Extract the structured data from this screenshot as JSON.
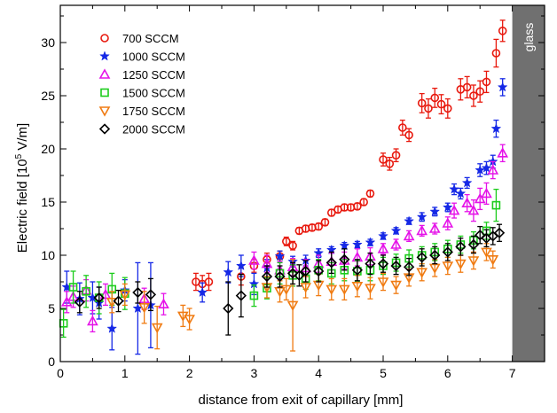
{
  "chart_data": {
    "type": "scatter",
    "title": "",
    "xlabel": "distance from exit of capillary [mm]",
    "ylabel_main": "Electric field [10",
    "ylabel_sup": "5",
    "ylabel_tail": " V/m]",
    "xlim": [
      0,
      7.5
    ],
    "ylim": [
      0,
      33.5
    ],
    "xticks": [
      0,
      1,
      2,
      3,
      4,
      5,
      6,
      7
    ],
    "yticks": [
      0,
      5,
      10,
      15,
      20,
      25,
      30
    ],
    "legend_position": "top-left",
    "glass": {
      "label": "glass",
      "x_start": 7.0,
      "x_end": 7.5,
      "color": "#707070"
    },
    "series": [
      {
        "name": "700 SCCM",
        "marker": "circle",
        "color": "#e8190e",
        "points": [
          [
            2.1,
            7.5,
            0.8
          ],
          [
            2.2,
            7.3,
            0.8
          ],
          [
            2.3,
            7.5,
            0.8
          ],
          [
            2.8,
            8.0,
            0.8
          ],
          [
            3.0,
            9.0,
            0.6
          ],
          [
            3.2,
            9.6,
            0.6
          ],
          [
            3.4,
            9.9,
            0.5
          ],
          [
            3.5,
            11.3,
            0.4
          ],
          [
            3.6,
            10.9,
            0.4
          ],
          [
            3.7,
            12.3,
            0.3
          ],
          [
            3.8,
            12.5,
            0.3
          ],
          [
            3.9,
            12.6,
            0.3
          ],
          [
            4.0,
            12.7,
            0.3
          ],
          [
            4.1,
            13.1,
            0.3
          ],
          [
            4.2,
            14.0,
            0.3
          ],
          [
            4.3,
            14.3,
            0.3
          ],
          [
            4.4,
            14.5,
            0.3
          ],
          [
            4.5,
            14.5,
            0.3
          ],
          [
            4.6,
            14.6,
            0.3
          ],
          [
            4.7,
            15.0,
            0.3
          ],
          [
            4.8,
            15.8,
            0.3
          ],
          [
            5.0,
            19.0,
            0.6
          ],
          [
            5.1,
            18.6,
            0.6
          ],
          [
            5.2,
            19.4,
            0.6
          ],
          [
            5.3,
            22.0,
            0.7
          ],
          [
            5.4,
            21.3,
            0.6
          ],
          [
            5.6,
            24.3,
            0.9
          ],
          [
            5.7,
            23.8,
            0.9
          ],
          [
            5.8,
            24.8,
            0.9
          ],
          [
            5.9,
            24.2,
            0.9
          ],
          [
            6.0,
            23.8,
            0.9
          ],
          [
            6.2,
            25.6,
            1.0
          ],
          [
            6.3,
            25.8,
            1.0
          ],
          [
            6.4,
            25.0,
            1.0
          ],
          [
            6.5,
            25.4,
            1.0
          ],
          [
            6.6,
            26.3,
            1.0
          ],
          [
            6.75,
            29.0,
            1.3
          ],
          [
            6.85,
            31.1,
            1.0
          ]
        ]
      },
      {
        "name": "1000 SCCM",
        "marker": "star",
        "color": "#1528e6",
        "points": [
          [
            0.1,
            7.0,
            1.5
          ],
          [
            0.3,
            5.9,
            1.5
          ],
          [
            0.5,
            6.0,
            1.5
          ],
          [
            0.6,
            5.5,
            1.5
          ],
          [
            0.8,
            3.1,
            2.0
          ],
          [
            1.0,
            6.7,
            1.0
          ],
          [
            1.2,
            5.0,
            4.3
          ],
          [
            1.4,
            5.3,
            4.0
          ],
          [
            2.2,
            6.5,
            0.9
          ],
          [
            2.6,
            8.4,
            1.0
          ],
          [
            2.8,
            9.0,
            1.0
          ],
          [
            3.0,
            7.3,
            1.0
          ],
          [
            3.2,
            8.8,
            0.8
          ],
          [
            3.4,
            9.9,
            0.5
          ],
          [
            3.6,
            9.4,
            0.5
          ],
          [
            3.8,
            9.5,
            0.5
          ],
          [
            4.0,
            10.2,
            0.4
          ],
          [
            4.2,
            10.5,
            0.3
          ],
          [
            4.4,
            10.9,
            0.3
          ],
          [
            4.6,
            11.0,
            0.3
          ],
          [
            4.8,
            11.2,
            0.3
          ],
          [
            5.0,
            11.8,
            0.3
          ],
          [
            5.2,
            12.3,
            0.3
          ],
          [
            5.4,
            13.2,
            0.3
          ],
          [
            5.6,
            13.6,
            0.4
          ],
          [
            5.8,
            14.1,
            0.4
          ],
          [
            6.0,
            14.5,
            0.4
          ],
          [
            6.1,
            16.2,
            0.5
          ],
          [
            6.2,
            15.8,
            0.5
          ],
          [
            6.3,
            16.8,
            0.5
          ],
          [
            6.5,
            18.0,
            0.6
          ],
          [
            6.6,
            18.2,
            0.6
          ],
          [
            6.7,
            18.8,
            0.6
          ],
          [
            6.75,
            21.9,
            0.8
          ],
          [
            6.85,
            25.8,
            0.8
          ]
        ]
      },
      {
        "name": "1250 SCCM",
        "marker": "triangle-up",
        "color": "#e512e8",
        "points": [
          [
            0.1,
            5.6,
            1.0
          ],
          [
            0.2,
            6.1,
            1.0
          ],
          [
            0.4,
            6.7,
            1.0
          ],
          [
            0.5,
            3.8,
            1.0
          ],
          [
            0.7,
            6.3,
            1.0
          ],
          [
            1.3,
            5.9,
            1.0
          ],
          [
            1.6,
            5.4,
            1.0
          ],
          [
            3.0,
            9.5,
            0.8
          ],
          [
            3.2,
            9.2,
            0.8
          ],
          [
            3.4,
            8.6,
            0.8
          ],
          [
            3.6,
            8.9,
            0.8
          ],
          [
            3.8,
            8.8,
            0.8
          ],
          [
            4.0,
            9.2,
            0.8
          ],
          [
            4.2,
            9.4,
            0.8
          ],
          [
            4.4,
            9.5,
            0.8
          ],
          [
            4.6,
            9.8,
            0.8
          ],
          [
            4.8,
            9.9,
            0.8
          ],
          [
            5.0,
            10.6,
            0.5
          ],
          [
            5.2,
            11.0,
            0.5
          ],
          [
            5.4,
            11.8,
            0.5
          ],
          [
            5.6,
            12.3,
            0.5
          ],
          [
            5.8,
            12.5,
            0.5
          ],
          [
            6.0,
            13.0,
            0.6
          ],
          [
            6.1,
            14.2,
            0.7
          ],
          [
            6.3,
            14.9,
            0.8
          ],
          [
            6.4,
            14.2,
            1.0
          ],
          [
            6.5,
            15.3,
            1.0
          ],
          [
            6.6,
            15.8,
            1.0
          ],
          [
            6.7,
            18.0,
            0.8
          ],
          [
            6.85,
            19.6,
            0.8
          ]
        ]
      },
      {
        "name": "1500 SCCM",
        "marker": "square",
        "color": "#1ccc1c",
        "points": [
          [
            0.05,
            3.6,
            1.3
          ],
          [
            0.2,
            7.0,
            1.5
          ],
          [
            0.4,
            6.6,
            1.5
          ],
          [
            0.6,
            6.0,
            1.5
          ],
          [
            0.8,
            6.8,
            1.5
          ],
          [
            1.0,
            6.4,
            1.5
          ],
          [
            3.0,
            6.2,
            1.0
          ],
          [
            3.2,
            6.9,
            1.0
          ],
          [
            3.4,
            8.3,
            1.0
          ],
          [
            3.6,
            8.1,
            1.0
          ],
          [
            3.8,
            7.8,
            1.0
          ],
          [
            4.0,
            8.6,
            1.0
          ],
          [
            4.2,
            8.3,
            1.0
          ],
          [
            4.4,
            8.6,
            1.0
          ],
          [
            4.6,
            8.5,
            1.0
          ],
          [
            4.8,
            8.6,
            1.0
          ],
          [
            5.0,
            9.0,
            0.8
          ],
          [
            5.2,
            9.3,
            0.8
          ],
          [
            5.4,
            9.7,
            0.8
          ],
          [
            5.6,
            10.0,
            0.8
          ],
          [
            5.8,
            10.3,
            0.8
          ],
          [
            6.0,
            10.6,
            0.8
          ],
          [
            6.2,
            11.0,
            0.8
          ],
          [
            6.4,
            11.4,
            0.8
          ],
          [
            6.6,
            12.3,
            0.8
          ],
          [
            6.75,
            14.7,
            1.5
          ]
        ]
      },
      {
        "name": "1750 SCCM",
        "marker": "triangle-down",
        "color": "#f07b12",
        "points": [
          [
            0.8,
            5.6,
            1.0
          ],
          [
            1.0,
            6.3,
            1.0
          ],
          [
            1.3,
            5.1,
            1.5
          ],
          [
            1.5,
            3.2,
            2.0
          ],
          [
            1.9,
            4.3,
            1.0
          ],
          [
            2.0,
            4.0,
            1.0
          ],
          [
            3.2,
            7.0,
            1.0
          ],
          [
            3.4,
            6.6,
            1.0
          ],
          [
            3.5,
            6.8,
            1.0
          ],
          [
            3.6,
            5.3,
            4.3
          ],
          [
            3.8,
            7.0,
            1.0
          ],
          [
            4.0,
            7.2,
            1.0
          ],
          [
            4.2,
            6.8,
            1.0
          ],
          [
            4.4,
            6.8,
            1.0
          ],
          [
            4.6,
            7.1,
            1.0
          ],
          [
            4.8,
            6.9,
            1.0
          ],
          [
            5.0,
            7.5,
            0.8
          ],
          [
            5.2,
            7.2,
            0.8
          ],
          [
            5.4,
            7.9,
            0.8
          ],
          [
            5.6,
            8.4,
            0.8
          ],
          [
            5.8,
            8.8,
            0.8
          ],
          [
            6.0,
            9.0,
            0.8
          ],
          [
            6.2,
            9.2,
            0.8
          ],
          [
            6.4,
            9.5,
            0.8
          ],
          [
            6.6,
            10.3,
            0.8
          ],
          [
            6.7,
            9.6,
            0.8
          ]
        ]
      },
      {
        "name": "2000 SCCM",
        "marker": "diamond",
        "color": "#000000",
        "points": [
          [
            0.3,
            5.6,
            1.0
          ],
          [
            0.6,
            6.0,
            1.0
          ],
          [
            0.9,
            5.7,
            1.0
          ],
          [
            1.2,
            6.5,
            1.0
          ],
          [
            1.4,
            6.3,
            1.5
          ],
          [
            2.6,
            5.0,
            2.5
          ],
          [
            2.8,
            6.2,
            2.0
          ],
          [
            3.2,
            8.0,
            1.0
          ],
          [
            3.4,
            8.0,
            1.0
          ],
          [
            3.6,
            8.3,
            1.0
          ],
          [
            3.7,
            8.1,
            1.0
          ],
          [
            3.8,
            8.5,
            1.0
          ],
          [
            4.0,
            8.5,
            1.0
          ],
          [
            4.2,
            9.3,
            1.0
          ],
          [
            4.4,
            9.6,
            1.0
          ],
          [
            4.6,
            8.6,
            1.0
          ],
          [
            4.8,
            9.2,
            1.0
          ],
          [
            5.0,
            9.2,
            0.8
          ],
          [
            5.2,
            9.0,
            0.8
          ],
          [
            5.4,
            8.9,
            0.8
          ],
          [
            5.6,
            9.8,
            0.8
          ],
          [
            5.8,
            10.0,
            0.8
          ],
          [
            6.0,
            10.3,
            0.8
          ],
          [
            6.2,
            10.8,
            0.8
          ],
          [
            6.4,
            11.0,
            0.8
          ],
          [
            6.5,
            11.9,
            0.8
          ],
          [
            6.6,
            11.6,
            0.8
          ],
          [
            6.7,
            11.8,
            0.8
          ],
          [
            6.8,
            12.1,
            0.8
          ]
        ]
      }
    ]
  }
}
